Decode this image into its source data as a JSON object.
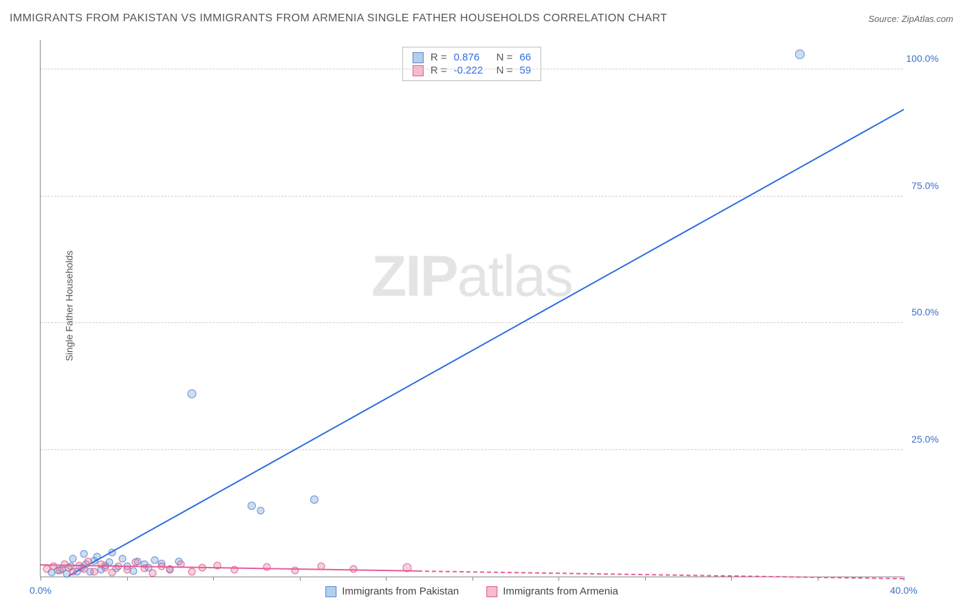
{
  "title": "IMMIGRANTS FROM PAKISTAN VS IMMIGRANTS FROM ARMENIA SINGLE FATHER HOUSEHOLDS CORRELATION CHART",
  "source": "Source: ZipAtlas.com",
  "watermark_zip": "ZIP",
  "watermark_atlas": "atlas",
  "y_axis_title": "Single Father Households",
  "chart": {
    "type": "scatter",
    "xlim": [
      0,
      40
    ],
    "ylim": [
      0,
      106
    ],
    "background_color": "#ffffff",
    "grid_color": "#cccccc",
    "axis_color": "#888888",
    "y_ticks": [
      25,
      50,
      75,
      100
    ],
    "y_tick_labels": [
      "25.0%",
      "50.0%",
      "75.0%",
      "100.0%"
    ],
    "x_ticks": [
      0,
      4,
      8,
      12,
      16,
      20,
      24,
      28,
      32,
      36,
      40
    ],
    "x_tick_labels": {
      "0": "0.0%",
      "40": "40.0%"
    },
    "series": [
      {
        "name": "Immigrants from Pakistan",
        "color_fill": "rgba(110,155,216,0.35)",
        "color_stroke": "#5280c7",
        "trend_color": "#2d6cdf",
        "R": "0.876",
        "N": "66",
        "marker_size": 11,
        "trend": {
          "x1": 1.3,
          "y1": 0,
          "x2": 40,
          "y2": 92
        },
        "points": [
          {
            "x": 35.2,
            "y": 103,
            "r": 14
          },
          {
            "x": 7.0,
            "y": 36,
            "r": 13
          },
          {
            "x": 9.8,
            "y": 14,
            "r": 12
          },
          {
            "x": 12.7,
            "y": 15.2,
            "r": 12
          },
          {
            "x": 10.2,
            "y": 13,
            "r": 11
          },
          {
            "x": 0.5,
            "y": 0.8
          },
          {
            "x": 0.8,
            "y": 1.2
          },
          {
            "x": 1.0,
            "y": 1.5
          },
          {
            "x": 1.2,
            "y": 0.6
          },
          {
            "x": 1.4,
            "y": 2.0
          },
          {
            "x": 1.7,
            "y": 1.0
          },
          {
            "x": 1.9,
            "y": 1.8
          },
          {
            "x": 2.1,
            "y": 2.5
          },
          {
            "x": 2.3,
            "y": 0.9
          },
          {
            "x": 2.5,
            "y": 3.1
          },
          {
            "x": 2.8,
            "y": 1.4
          },
          {
            "x": 3.0,
            "y": 2.2
          },
          {
            "x": 3.2,
            "y": 2.8
          },
          {
            "x": 3.5,
            "y": 1.6
          },
          {
            "x": 3.8,
            "y": 3.5
          },
          {
            "x": 4.0,
            "y": 2.0
          },
          {
            "x": 4.3,
            "y": 1.1
          },
          {
            "x": 4.5,
            "y": 3.0
          },
          {
            "x": 4.8,
            "y": 2.4
          },
          {
            "x": 5.0,
            "y": 1.8
          },
          {
            "x": 5.3,
            "y": 3.2
          },
          {
            "x": 5.6,
            "y": 2.6
          },
          {
            "x": 6.0,
            "y": 1.5
          },
          {
            "x": 6.4,
            "y": 3.0
          },
          {
            "x": 2.0,
            "y": 4.5
          },
          {
            "x": 2.6,
            "y": 4.0
          },
          {
            "x": 3.3,
            "y": 4.8
          },
          {
            "x": 1.5,
            "y": 3.5
          }
        ]
      },
      {
        "name": "Immigrants from Armenia",
        "color_fill": "rgba(235,120,160,0.35)",
        "color_stroke": "#da5082",
        "trend_color": "#e85b9b",
        "R": "-0.222",
        "N": "59",
        "marker_size": 11,
        "trend_solid": {
          "x1": 0,
          "y1": 2.2,
          "x2": 17.5,
          "y2": 1.0
        },
        "trend_dashed": {
          "x1": 17.5,
          "y1": 1.0,
          "x2": 40,
          "y2": -0.5
        },
        "points": [
          {
            "x": 0.3,
            "y": 1.5
          },
          {
            "x": 0.6,
            "y": 2.0
          },
          {
            "x": 0.9,
            "y": 1.2
          },
          {
            "x": 1.1,
            "y": 2.5
          },
          {
            "x": 1.3,
            "y": 1.8
          },
          {
            "x": 1.5,
            "y": 0.9
          },
          {
            "x": 1.8,
            "y": 2.2
          },
          {
            "x": 2.0,
            "y": 1.5
          },
          {
            "x": 2.2,
            "y": 3.0
          },
          {
            "x": 2.5,
            "y": 1.0
          },
          {
            "x": 2.8,
            "y": 2.4
          },
          {
            "x": 3.0,
            "y": 1.7
          },
          {
            "x": 3.3,
            "y": 0.8
          },
          {
            "x": 3.6,
            "y": 2.1
          },
          {
            "x": 4.0,
            "y": 1.4
          },
          {
            "x": 4.4,
            "y": 2.8
          },
          {
            "x": 4.8,
            "y": 1.6
          },
          {
            "x": 5.2,
            "y": 0.7
          },
          {
            "x": 5.6,
            "y": 2.0
          },
          {
            "x": 6.0,
            "y": 1.3
          },
          {
            "x": 6.5,
            "y": 2.5
          },
          {
            "x": 7.0,
            "y": 1.0
          },
          {
            "x": 7.5,
            "y": 1.8
          },
          {
            "x": 8.2,
            "y": 2.2
          },
          {
            "x": 9.0,
            "y": 1.4
          },
          {
            "x": 10.5,
            "y": 1.9
          },
          {
            "x": 11.8,
            "y": 1.2
          },
          {
            "x": 13.0,
            "y": 2.0
          },
          {
            "x": 14.5,
            "y": 1.5
          },
          {
            "x": 17.0,
            "y": 1.8,
            "r": 13
          }
        ]
      }
    ],
    "stats_labels": {
      "R": "R  =",
      "N": "N  ="
    }
  },
  "legend": {
    "series1": "Immigrants from Pakistan",
    "series2": "Immigrants from Armenia"
  }
}
